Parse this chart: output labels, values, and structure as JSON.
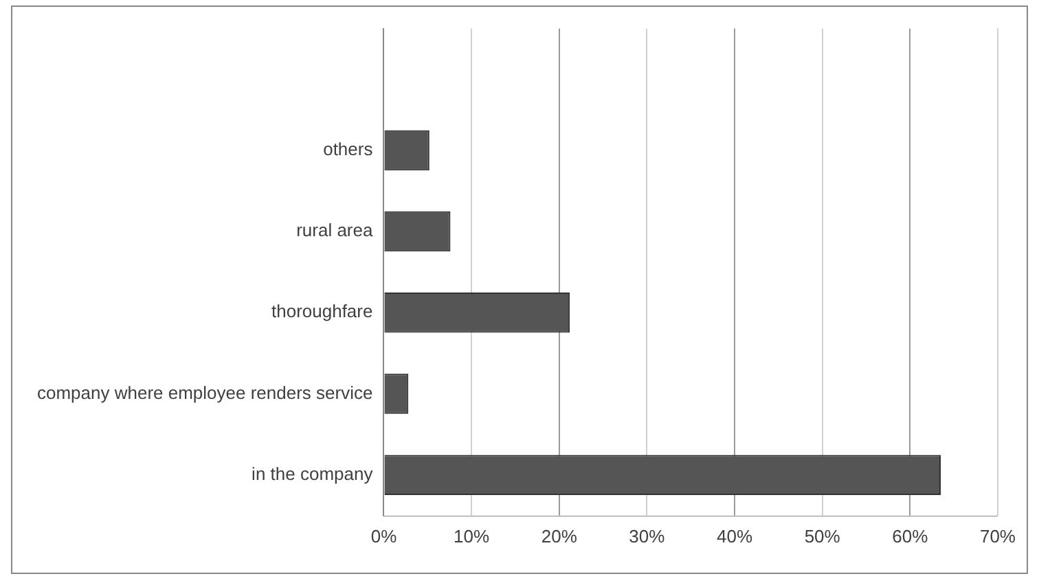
{
  "chart_data": {
    "type": "bar",
    "orientation": "horizontal",
    "categories": [
      null,
      "others",
      "rural area",
      "thoroughfare",
      "company where employee renders service",
      "in the company"
    ],
    "values": [
      null,
      5.2,
      7.6,
      21.2,
      2.8,
      63.5
    ],
    "color": "#555555",
    "xlim": [
      0,
      70
    ],
    "xticks": [
      {
        "value": 0,
        "label": "0%"
      },
      {
        "value": 10,
        "label": "10%"
      },
      {
        "value": 20,
        "label": "20%"
      },
      {
        "value": 30,
        "label": "30%"
      },
      {
        "value": 40,
        "label": "40%"
      },
      {
        "value": 50,
        "label": "50%"
      },
      {
        "value": 60,
        "label": "60%"
      },
      {
        "value": 70,
        "label": "70%"
      }
    ],
    "grid": "x",
    "legend": false
  }
}
